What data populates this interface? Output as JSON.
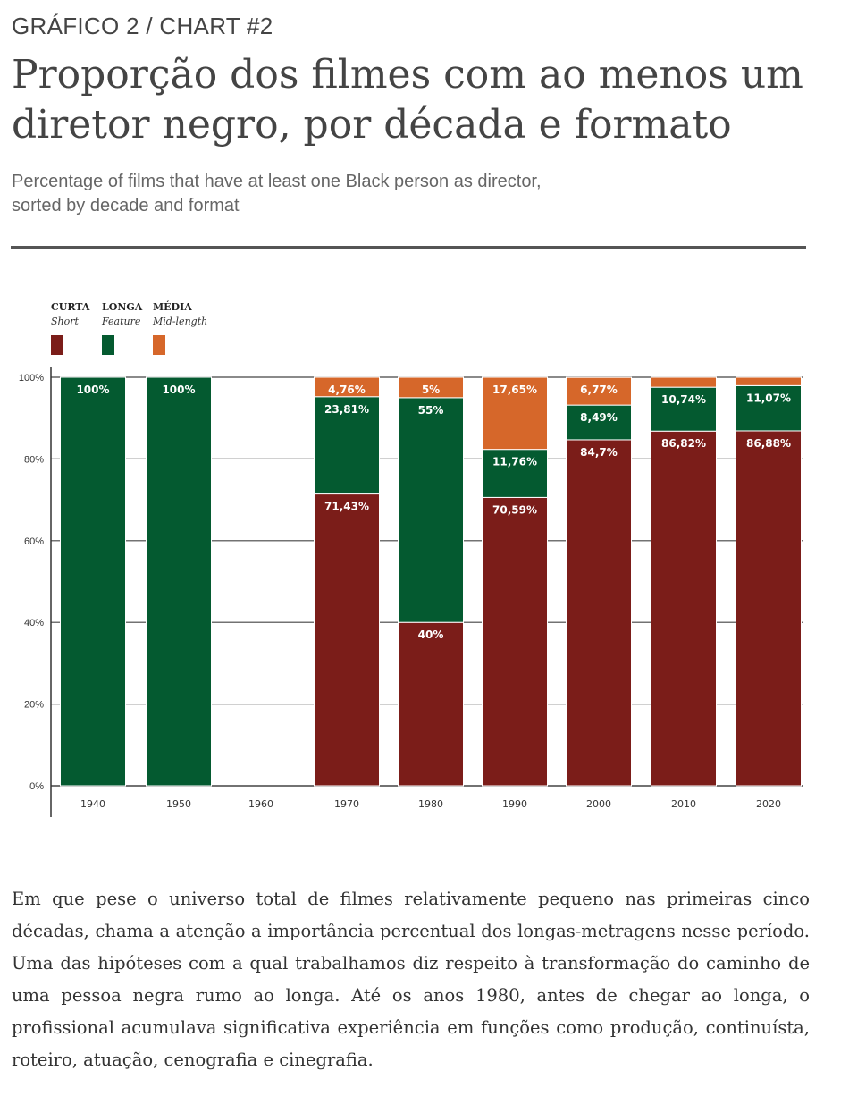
{
  "kicker": "GRÁFICO 2 / CHART #2",
  "title_line1": "Proporção dos filmes com ao menos um",
  "title_line2": "diretor negro, por década e formato",
  "subtitle_line1": "Percentage of films that have at least one Black person as director,",
  "subtitle_line2": "sorted by decade and format",
  "paragraph": "Em que pese o universo total de filmes relativamente pequeno nas primeiras cinco décadas, chama a atenção a importância percentual dos longas-metragens nesse período. Uma das hipóteses com a qual trabalhamos diz respeito à transformação do caminho de uma pessoa negra rumo ao longa. Até os anos 1980, antes de chegar ao longa, o profissional acumulava significativa experiência em funções como produção, continuísta, roteiro, atuação, cenografia e cinegrafia.",
  "chart_data": {
    "type": "bar",
    "stacked": true,
    "categories": [
      "1940",
      "1950",
      "1960",
      "1970",
      "1980",
      "1990",
      "2000",
      "2010",
      "2020"
    ],
    "series": [
      {
        "name": "CURTA",
        "name_en": "Short",
        "color": "#7b1d19",
        "values": [
          0,
          0,
          0,
          71.43,
          40,
          70.59,
          84.7,
          86.82,
          86.88
        ],
        "labels": [
          "",
          "",
          "",
          "71,43%",
          "40%",
          "70,59%",
          "84,7%",
          "86,82%",
          "86,88%"
        ]
      },
      {
        "name": "LONGA",
        "name_en": "Feature",
        "color": "#045a30",
        "values": [
          100,
          100,
          0,
          23.81,
          55,
          11.76,
          8.49,
          10.74,
          11.07
        ],
        "labels": [
          "100%",
          "100%",
          "",
          "23,81%",
          "55%",
          "11,76%",
          "8,49%",
          "10,74%",
          "11,07%"
        ]
      },
      {
        "name": "MÉDIA",
        "name_en": "Mid-length",
        "color": "#d6672a",
        "values": [
          0,
          0,
          0,
          4.76,
          5,
          17.65,
          6.77,
          2.44,
          2.05
        ],
        "labels": [
          "",
          "",
          "",
          "4,76%",
          "5%",
          "17,65%",
          "6,77%",
          "",
          ""
        ]
      }
    ],
    "yticks": [
      "0%",
      "20%",
      "40%",
      "60%",
      "80%",
      "100%"
    ],
    "ylim": [
      0,
      100
    ],
    "legend_position": "top-left",
    "grid": true
  }
}
